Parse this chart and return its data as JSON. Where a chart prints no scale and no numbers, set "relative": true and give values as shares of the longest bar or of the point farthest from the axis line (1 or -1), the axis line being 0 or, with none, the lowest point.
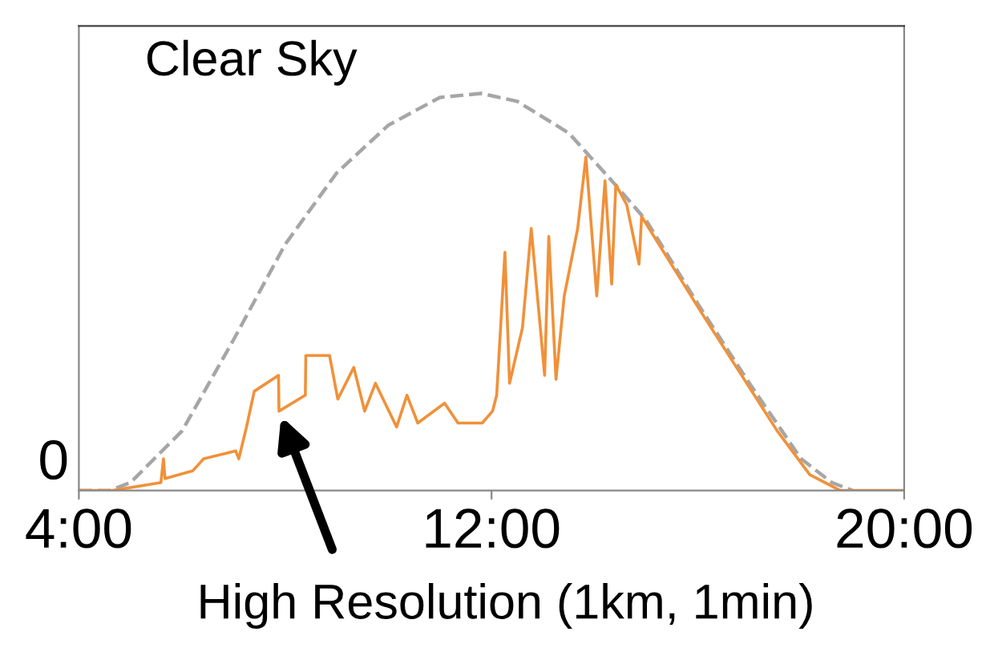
{
  "chart_data": {
    "type": "line",
    "relative": true,
    "xlim": [
      4,
      20
    ],
    "xticks": [
      {
        "value": 4,
        "label": "4:00"
      },
      {
        "value": 12,
        "label": "12:00"
      },
      {
        "value": 20,
        "label": "20:00"
      }
    ],
    "annotations": [
      "0"
    ],
    "grid": false,
    "legend": false,
    "series": [
      {
        "name": "Clear Sky",
        "color": "#a6a6a6",
        "line_style": "dashed",
        "x": [
          4.0,
          4.6,
          5.0,
          6.0,
          7.0,
          8.0,
          9.0,
          10.0,
          11.0,
          11.8,
          12.5,
          13.5,
          14.4,
          15.0,
          16.0,
          17.0,
          18.0,
          18.6,
          19.0
        ],
        "values": [
          0,
          0,
          0.02,
          0.15,
          0.38,
          0.62,
          0.8,
          0.92,
          0.99,
          1.0,
          0.98,
          0.9,
          0.77,
          0.68,
          0.47,
          0.27,
          0.08,
          0.02,
          0
        ]
      },
      {
        "name": "High Resolution (1km, 1min)",
        "color": "#f0913a",
        "line_style": "solid",
        "x": [
          4.0,
          4.65,
          5.59,
          5.64,
          5.67,
          6.21,
          6.42,
          7.04,
          7.1,
          7.25,
          7.4,
          7.87,
          7.88,
          8.39,
          8.4,
          8.86,
          9.02,
          9.33,
          9.54,
          9.75,
          10.16,
          10.36,
          10.57,
          11.09,
          11.35,
          11.82,
          12.02,
          12.1,
          12.26,
          12.35,
          12.6,
          12.77,
          13.03,
          13.11,
          13.25,
          13.41,
          13.67,
          13.83,
          14.04,
          14.2,
          14.33,
          14.41,
          14.62,
          14.86,
          14.91,
          16.06,
          17.54,
          18.17,
          18.76,
          20.0
        ],
        "values": [
          0,
          0,
          0.02,
          0.08,
          0.03,
          0.05,
          0.08,
          0.1,
          0.08,
          0.16,
          0.25,
          0.29,
          0.2,
          0.24,
          0.34,
          0.34,
          0.23,
          0.31,
          0.2,
          0.27,
          0.16,
          0.24,
          0.17,
          0.22,
          0.17,
          0.17,
          0.2,
          0.24,
          0.6,
          0.27,
          0.41,
          0.66,
          0.29,
          0.64,
          0.28,
          0.49,
          0.66,
          0.84,
          0.49,
          0.78,
          0.52,
          0.77,
          0.72,
          0.57,
          0.69,
          0.45,
          0.15,
          0.04,
          0,
          0
        ]
      }
    ]
  }
}
